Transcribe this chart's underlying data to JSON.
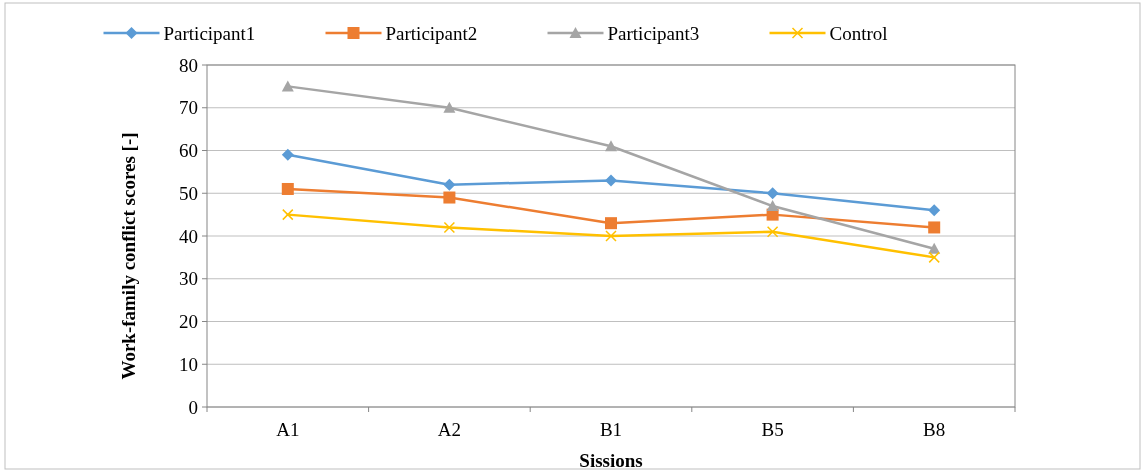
{
  "chart_data": {
    "type": "line",
    "xlabel": "Sissions",
    "ylabel": "Work-family conflict scores [-]",
    "categories": [
      "A1",
      "A2",
      "B1",
      "B5",
      "B8"
    ],
    "series": [
      {
        "name": "Participant1",
        "color": "#5b9bd5",
        "marker": "diamond",
        "values": [
          59,
          52,
          53,
          50,
          46
        ]
      },
      {
        "name": "Participant2",
        "color": "#ed7d31",
        "marker": "square",
        "values": [
          51,
          49,
          43,
          45,
          42
        ]
      },
      {
        "name": "Participant3",
        "color": "#a5a5a5",
        "marker": "triangle",
        "values": [
          75,
          70,
          61,
          47,
          37
        ]
      },
      {
        "name": "Control",
        "color": "#ffc000",
        "marker": "cross",
        "values": [
          45,
          42,
          40,
          41,
          35
        ]
      }
    ],
    "ylim": [
      0,
      80
    ],
    "yticks": [
      0,
      10,
      20,
      30,
      40,
      50,
      60,
      70,
      80
    ],
    "grid": "y",
    "legend": "top",
    "line_style": "solid"
  }
}
